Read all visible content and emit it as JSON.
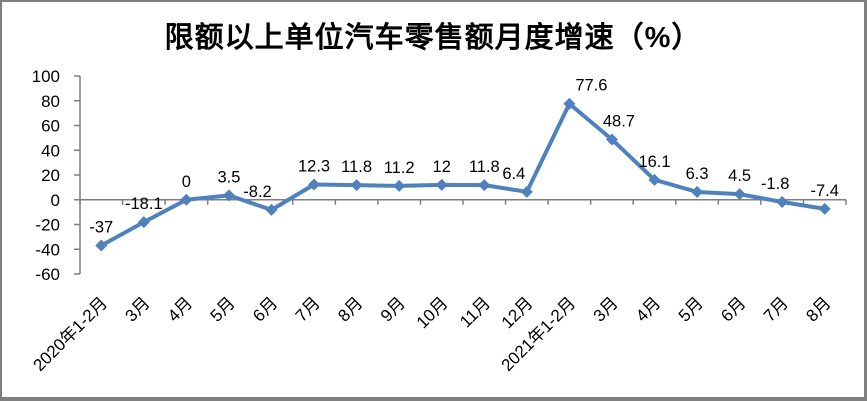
{
  "chart_data": {
    "type": "line",
    "title": "限额以上单位汽车零售额月度增速（%）",
    "categories": [
      "2020年1-2月",
      "3月",
      "4月",
      "5月",
      "6月",
      "7月",
      "8月",
      "9月",
      "10月",
      "11月",
      "12月",
      "2021年1-2月",
      "3月",
      "4月",
      "5月",
      "6月",
      "7月",
      "8月"
    ],
    "values": [
      -37,
      -18.1,
      0,
      3.5,
      -8.2,
      12.3,
      11.8,
      11.2,
      12,
      11.8,
      6.4,
      77.6,
      48.7,
      16.1,
      6.3,
      4.5,
      -1.8,
      -7.4
    ],
    "y_tick_labels": [
      "100",
      "80",
      "60",
      "40",
      "20",
      "0",
      "-20",
      "-40",
      "-60"
    ],
    "ylim": [
      -60,
      100
    ],
    "y_tick_step": 20,
    "xlabel": "",
    "ylabel": "",
    "grid": false,
    "legend": "none",
    "marker": "diamond",
    "line_color": "#4F81BD",
    "axis_color": "#7F7F7F",
    "text_color": "#000000",
    "label_dx": [
      0,
      0,
      0,
      0,
      -14,
      0,
      0,
      0,
      0,
      0,
      -13,
      22,
      7,
      0,
      0,
      0,
      -7,
      0
    ]
  }
}
